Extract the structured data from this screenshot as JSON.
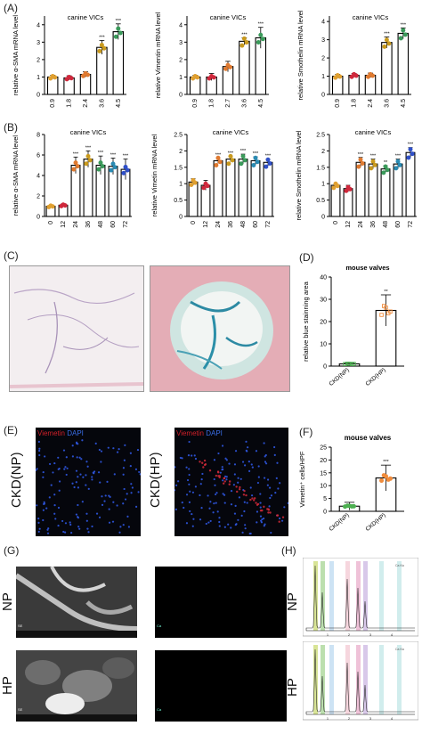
{
  "panels": {
    "A": "(A)",
    "B": "(B)",
    "C": "(C)",
    "D": "(D)",
    "E": "(E)",
    "F": "(F)",
    "G": "(G)",
    "H": "(H)"
  },
  "chart_data": [
    {
      "id": "A1",
      "type": "bar",
      "title": "canine VICs",
      "ylabel": "relative α-SMA mRNA level",
      "categories": [
        "0.9",
        "1.8",
        "2.4",
        "3.6",
        "4.5"
      ],
      "values": [
        1.0,
        0.95,
        1.15,
        2.7,
        3.6
      ],
      "errors": [
        0.1,
        0.12,
        0.15,
        0.4,
        0.45
      ],
      "sig": [
        "",
        "",
        "",
        "***",
        "***"
      ],
      "ylim": [
        0,
        4.5
      ],
      "yticks": [
        0,
        1,
        2,
        3,
        4
      ],
      "color": "#e0a030"
    },
    {
      "id": "A2",
      "type": "bar",
      "title": "canine VICs",
      "ylabel": "relative Vimentin mRNA level",
      "categories": [
        "0.9",
        "1.8",
        "2.7",
        "3.6",
        "4.5"
      ],
      "values": [
        1.0,
        1.0,
        1.6,
        3.05,
        3.25
      ],
      "errors": [
        0.1,
        0.2,
        0.3,
        0.2,
        0.6
      ],
      "sig": [
        "",
        "",
        "",
        "***",
        "***"
      ],
      "ylim": [
        0,
        4.5
      ],
      "yticks": [
        0,
        1,
        2,
        3,
        4
      ],
      "color": "#e0a030"
    },
    {
      "id": "A3",
      "type": "bar",
      "title": "canine VICs",
      "ylabel": "relative Smothelin mRNA level",
      "categories": [
        "0.9",
        "1.8",
        "2.4",
        "3.6",
        "4.5"
      ],
      "values": [
        1.0,
        1.05,
        1.05,
        2.85,
        3.35
      ],
      "errors": [
        0.1,
        0.1,
        0.12,
        0.3,
        0.3
      ],
      "sig": [
        "",
        "",
        "",
        "***",
        "***"
      ],
      "ylim": [
        0,
        4.3
      ],
      "yticks": [
        0,
        1,
        2,
        3,
        4
      ],
      "color": "#e0a030"
    },
    {
      "id": "B1",
      "type": "bar",
      "title": "canine VICs",
      "ylabel": "relative α-SMA mRNA level",
      "categories": [
        "0",
        "12",
        "24",
        "36",
        "48",
        "60",
        "72"
      ],
      "values": [
        1.0,
        1.1,
        5.0,
        5.6,
        5.0,
        4.9,
        4.6
      ],
      "errors": [
        0.1,
        0.15,
        0.8,
        0.8,
        0.9,
        0.8,
        1.0
      ],
      "sig": [
        "",
        "",
        "***",
        "***",
        "***",
        "***",
        "***"
      ],
      "ylim": [
        0,
        8
      ],
      "yticks": [
        0,
        2,
        4,
        6,
        8
      ],
      "color": "#e0a030"
    },
    {
      "id": "B2",
      "type": "bar",
      "title": "canine VICs",
      "ylabel": "relative Vimetin mRNA level",
      "categories": [
        "0",
        "12",
        "24",
        "36",
        "48",
        "60",
        "72"
      ],
      "values": [
        1.05,
        0.95,
        1.7,
        1.75,
        1.75,
        1.7,
        1.65
      ],
      "errors": [
        0.1,
        0.15,
        0.08,
        0.08,
        0.15,
        0.12,
        0.1
      ],
      "sig": [
        "",
        "",
        "***",
        "***",
        "***",
        "***",
        "***"
      ],
      "ylim": [
        0,
        2.5
      ],
      "yticks": [
        0.0,
        0.5,
        1.0,
        1.5,
        2.0,
        2.5
      ],
      "color": "#e0a030"
    },
    {
      "id": "B3",
      "type": "bar",
      "title": "canine VICs",
      "ylabel": "relative Smothelin mRNA level",
      "categories": [
        "0",
        "12",
        "24",
        "36",
        "48",
        "60",
        "72"
      ],
      "values": [
        0.95,
        0.85,
        1.65,
        1.6,
        1.45,
        1.6,
        1.95
      ],
      "errors": [
        0.05,
        0.1,
        0.15,
        0.15,
        0.1,
        0.15,
        0.15
      ],
      "sig": [
        "",
        "",
        "***",
        "***",
        "**",
        "***",
        "***"
      ],
      "ylim": [
        0,
        2.5
      ],
      "yticks": [
        0.0,
        0.5,
        1.0,
        1.5,
        2.0,
        2.5
      ],
      "color": "#e0a030"
    },
    {
      "id": "D",
      "type": "bar",
      "title": "mouse valves",
      "ylabel": "relative blue stainning area",
      "categories": [
        "CKD(NP)",
        "CKD(HP)"
      ],
      "values": [
        1.0,
        25
      ],
      "errors": [
        0.3,
        7
      ],
      "sig": [
        "",
        "**"
      ],
      "ylim": [
        0,
        40
      ],
      "yticks": [
        0,
        10,
        20,
        30,
        40
      ],
      "color": "#f08c3c",
      "pointColor0": "#4caf50"
    },
    {
      "id": "F",
      "type": "bar",
      "title": "mouse valves",
      "ylabel": "Vimetin⁺ cells/HPF",
      "categories": [
        "CKD(NP)",
        "CKD(HP)"
      ],
      "values": [
        2,
        13
      ],
      "errors": [
        1.5,
        5
      ],
      "sig": [
        "",
        "***"
      ],
      "ylim": [
        0,
        25
      ],
      "yticks": [
        0,
        5,
        10,
        15,
        20,
        25
      ],
      "color": "#f08c3c",
      "pointColor0": "#4caf50"
    }
  ],
  "panelE": {
    "vim": "Viemetin",
    "dapi": "DAPI",
    "vim2": "Viemetin",
    "dapi2": "DAPI",
    "np": "CKD(NP)",
    "hp": "CKD(HP)"
  },
  "panelG": {
    "np": "NP",
    "hp": "HP",
    "se": "SE",
    "ca": "Ca"
  },
  "panelH": {
    "np": "NP",
    "hp": "HP",
    "caka": "Ca Ka"
  }
}
